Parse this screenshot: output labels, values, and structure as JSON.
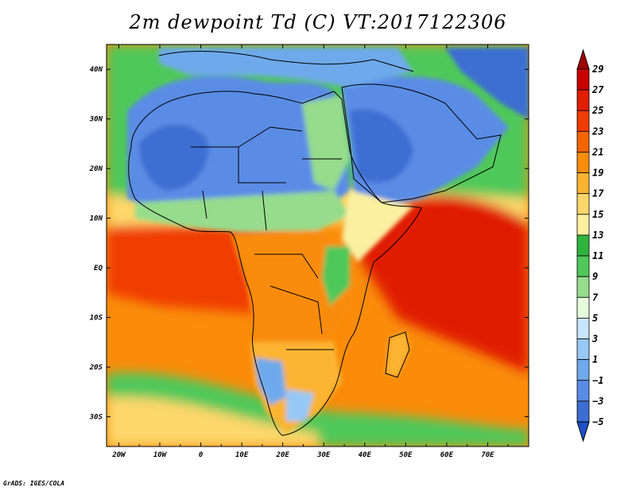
{
  "title": "2m dewpoint Td (C) VT:2017122306",
  "credit": "GrADS: IGES/COLA",
  "chart_data": {
    "type": "heatmap",
    "variable": "2m dewpoint",
    "units": "C",
    "valid_time": "2017122306",
    "lon_range": [
      -23,
      80
    ],
    "lat_range": [
      -36,
      45
    ],
    "lon_ticks": [
      "20W",
      "10W",
      "0",
      "10E",
      "20E",
      "30E",
      "40E",
      "50E",
      "60E",
      "70E"
    ],
    "lat_ticks": [
      "40N",
      "30N",
      "20N",
      "10N",
      "EQ",
      "10S",
      "20S",
      "30S"
    ],
    "colorbar_levels": [
      "29",
      "27",
      "25",
      "23",
      "21",
      "19",
      "17",
      "15",
      "13",
      "11",
      "9",
      "7",
      "5",
      "3",
      "1",
      "-1",
      "-3",
      "-5"
    ],
    "colorbar_colors": [
      "#a00000",
      "#c80000",
      "#e01e00",
      "#f03c00",
      "#f56400",
      "#fa8c0a",
      "#fbb432",
      "#fdd76a",
      "#fbf0a0",
      "#2eb43c",
      "#50c85a",
      "#96dc8c",
      "#e6fadc",
      "#c8e6ff",
      "#96c8f5",
      "#6eaaeb",
      "#5a8ce6",
      "#3c6ed2",
      "#1e50c8"
    ],
    "colorbar_extends": "both"
  }
}
